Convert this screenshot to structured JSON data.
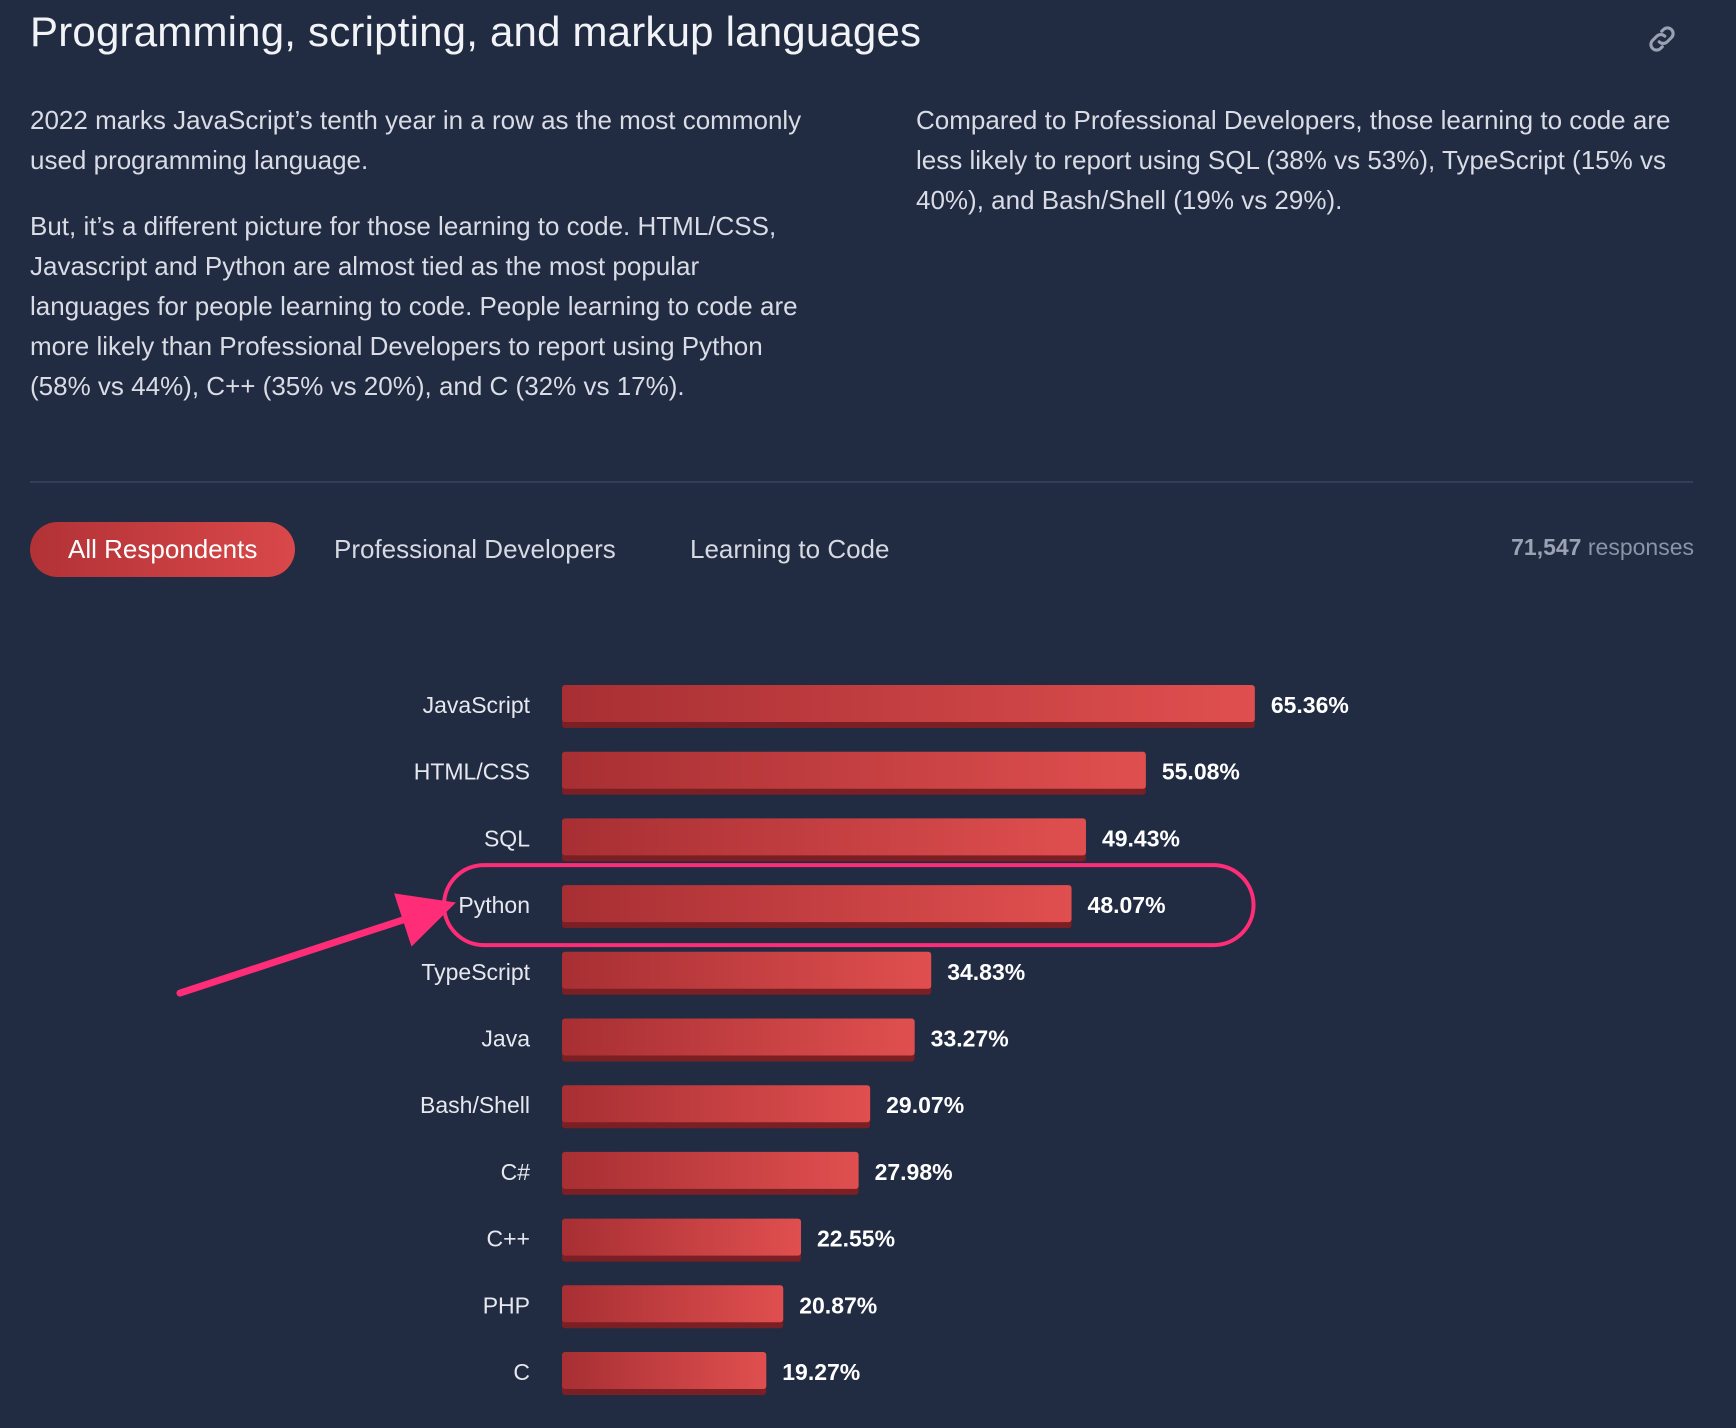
{
  "header": {
    "title": "Programming, scripting, and markup languages",
    "link_icon": "link-icon"
  },
  "intro": {
    "left_p1": "2022 marks JavaScript’s tenth year in a row as the most commonly used programming language.",
    "left_p2": "But, it’s a different picture for those learning to code. HTML/CSS, Javascript and Python are almost tied as the most popular languages for people learning to code. People learning to code are more likely than Professional Developers to report using Python (58% vs 44%), C++ (35% vs 20%), and C (32% vs 17%).",
    "right_p1": "Compared to Professional Developers, those learning to code are less likely to report using SQL (38% vs 53%), TypeScript (15% vs 40%), and Bash/Shell (19% vs 29%)."
  },
  "tabs": [
    {
      "label": "All Respondents",
      "active": true
    },
    {
      "label": "Professional Developers",
      "active": false
    },
    {
      "label": "Learning to Code",
      "active": false
    }
  ],
  "responses": {
    "count": "71,547",
    "label": "responses"
  },
  "colors": {
    "background": "#212b42",
    "bar_start": "#a72f33",
    "bar_end": "#e04f4f",
    "tab_active": "#c63b3e",
    "highlight": "#ff2d78"
  },
  "chart_data": {
    "type": "bar",
    "orientation": "horizontal",
    "categories": [
      "JavaScript",
      "HTML/CSS",
      "SQL",
      "Python",
      "TypeScript",
      "Java",
      "Bash/Shell",
      "C#",
      "C++",
      "PHP",
      "C"
    ],
    "values": [
      65.36,
      55.08,
      49.43,
      48.07,
      34.83,
      33.27,
      29.07,
      27.98,
      22.55,
      20.87,
      19.27
    ],
    "value_labels": [
      "65.36%",
      "55.08%",
      "49.43%",
      "48.07%",
      "34.83%",
      "33.27%",
      "29.07%",
      "27.98%",
      "22.55%",
      "20.87%",
      "19.27%"
    ],
    "unit": "%",
    "grid": false,
    "highlighted_category": "Python"
  }
}
